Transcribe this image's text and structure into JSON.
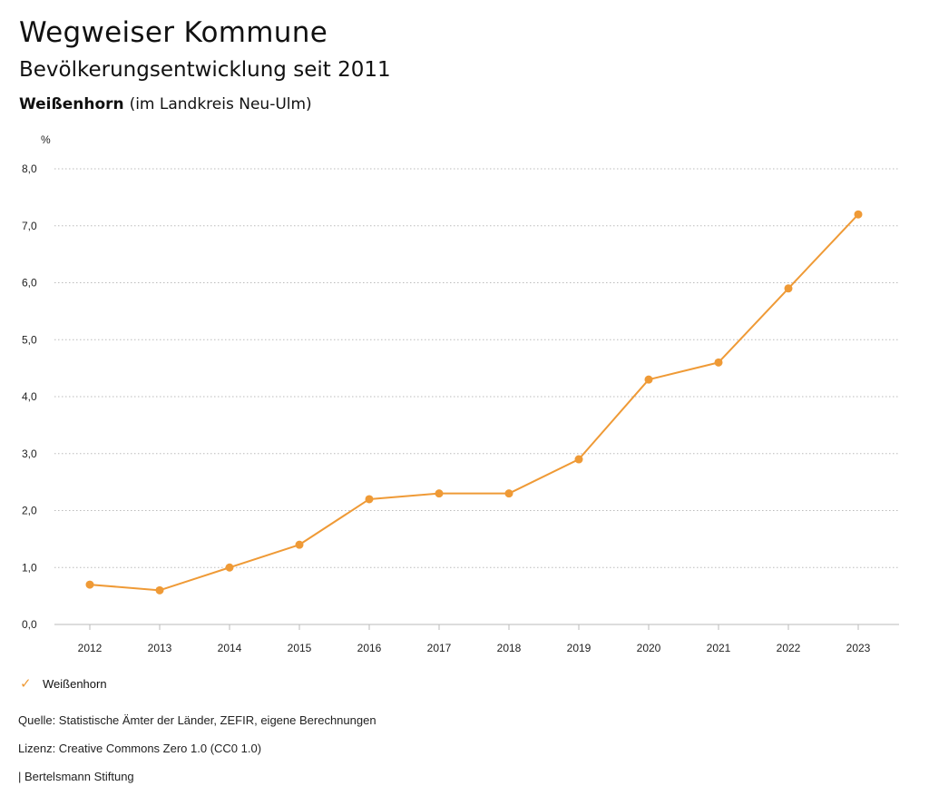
{
  "header": {
    "title": "Wegweiser Kommune",
    "subtitle": "Bevölkerungsentwicklung seit 2011",
    "region_name": "Weißenhorn",
    "region_context": "(im Landkreis Neu-Ulm)"
  },
  "footer": {
    "source": "Quelle: Statistische Ämter der Länder, ZEFIR, eigene Berechnungen",
    "license": "Lizenz: Creative Commons Zero 1.0 (CC0 1.0)",
    "publisher": "| Bertelsmann Stiftung"
  },
  "legend": {
    "items": [
      "Weißenhorn"
    ]
  },
  "colors": {
    "series": "#ef9a36",
    "grid": "#bbbbbb"
  },
  "chart_data": {
    "type": "line",
    "ylabel": "%",
    "ylim": [
      0,
      8
    ],
    "yticks": [
      "0,0",
      "1,0",
      "2,0",
      "3,0",
      "4,0",
      "5,0",
      "6,0",
      "7,0",
      "8,0"
    ],
    "x": [
      "2012",
      "2013",
      "2014",
      "2015",
      "2016",
      "2017",
      "2018",
      "2019",
      "2020",
      "2021",
      "2022",
      "2023"
    ],
    "series": [
      {
        "name": "Weißenhorn",
        "values": [
          0.7,
          0.6,
          1.0,
          1.4,
          2.2,
          2.3,
          2.3,
          2.9,
          4.3,
          4.6,
          5.9,
          7.2
        ]
      }
    ],
    "grid": true,
    "legend_position": "bottom-left"
  }
}
